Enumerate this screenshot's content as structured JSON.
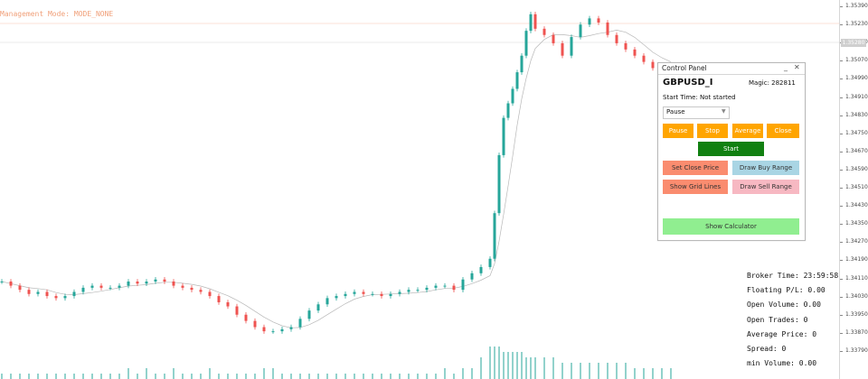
{
  "chart": {
    "mode_label": "Management Mode: MODE_NONE",
    "axis_ticks": [
      "1.35390",
      "1.35230",
      "1.35150",
      "1.35070",
      "1.34990",
      "1.34910",
      "1.34830",
      "1.34750",
      "1.34670",
      "1.34590",
      "1.34510",
      "1.34430",
      "1.34350",
      "1.34270",
      "1.34190",
      "1.34110",
      "1.34030",
      "1.33950",
      "1.33870",
      "1.33790"
    ],
    "current_price": "1.35280",
    "colors": {
      "bull": "#26a69a",
      "bear": "#ef5350",
      "ma": "#b0b0b0",
      "volume": "#26a69a",
      "guide": "#f7c6b0"
    },
    "chart_data": {
      "type": "candlestick",
      "symbol": "GBPUSD_I",
      "x": [
        0,
        10,
        20,
        30,
        40,
        50,
        60,
        70,
        80,
        90,
        100,
        110,
        120,
        130,
        140,
        150,
        160,
        170,
        180,
        190,
        200,
        210,
        220,
        230,
        240,
        250,
        260,
        270,
        280,
        290,
        300,
        310,
        320,
        330,
        340,
        350,
        360,
        370,
        380,
        390,
        400,
        410,
        420,
        430,
        440,
        450,
        460,
        470,
        480,
        490,
        500,
        510,
        520,
        530,
        540,
        545,
        550,
        555,
        560,
        565,
        570,
        575,
        580,
        585,
        590,
        600,
        610,
        620,
        630,
        640,
        650,
        660,
        670,
        680,
        690,
        700,
        710,
        720,
        730,
        740
      ],
      "close": [
        1.3421,
        1.3419,
        1.3417,
        1.3415,
        1.3416,
        1.3414,
        1.3413,
        1.3414,
        1.3416,
        1.3418,
        1.3419,
        1.3418,
        1.3418,
        1.3419,
        1.3421,
        1.342,
        1.3421,
        1.3422,
        1.3421,
        1.3419,
        1.3418,
        1.3417,
        1.3416,
        1.3414,
        1.3411,
        1.3409,
        1.3405,
        1.3402,
        1.3399,
        1.3397,
        1.3397,
        1.3398,
        1.3399,
        1.3403,
        1.3407,
        1.341,
        1.3413,
        1.3414,
        1.3415,
        1.3416,
        1.3415,
        1.3415,
        1.3414,
        1.3415,
        1.3416,
        1.3417,
        1.3417,
        1.3418,
        1.3419,
        1.3419,
        1.3417,
        1.3422,
        1.3425,
        1.3428,
        1.3432,
        1.3454,
        1.3482,
        1.35,
        1.3507,
        1.3514,
        1.3522,
        1.353,
        1.3542,
        1.355,
        1.3543,
        1.354,
        1.3536,
        1.353,
        1.3539,
        1.3545,
        1.3548,
        1.3546,
        1.354,
        1.3536,
        1.3533,
        1.353,
        1.3527,
        1.3524,
        1.3524,
        1.3524
      ],
      "volume": [
        1,
        1,
        1,
        1,
        1,
        1,
        1,
        1,
        1,
        1,
        1,
        1,
        1,
        1,
        2,
        1,
        2,
        1,
        1,
        2,
        1,
        1,
        1,
        2,
        1,
        1,
        1,
        1,
        1,
        2,
        2,
        1,
        1,
        1,
        1,
        1,
        1,
        1,
        1,
        1,
        1,
        1,
        1,
        1,
        1,
        1,
        1,
        1,
        1,
        2,
        1,
        2,
        2,
        4,
        6,
        6,
        6,
        5,
        5,
        5,
        5,
        5,
        4,
        4,
        4,
        4,
        4,
        3,
        3,
        3,
        3,
        3,
        3,
        3,
        3,
        2,
        2,
        2,
        2,
        2
      ]
    }
  },
  "panel": {
    "title": "Control Panel",
    "min_glyph": "_",
    "close_glyph": "✕",
    "symbol": "GBPUSD_I",
    "magic": "Magic: 282811",
    "start_time": "Start Time: Not started",
    "mode_select": "Pause",
    "buttons": {
      "pause": "Pause",
      "stop": "Stop",
      "average": "Average",
      "close": "Close",
      "start": "Start",
      "set_close_price": "Set Close Price",
      "draw_buy_range": "Draw Buy Range",
      "show_grid_lines": "Show Grid Lines",
      "draw_sell_range": "Draw Sell Range",
      "show_calculator": "Show Calculator"
    }
  },
  "stats": {
    "broker_time": "Broker Time: 23:59:58",
    "floating_pl": "Floating P/L: 0.00",
    "open_volume": "Open Volume: 0.00",
    "open_trades": "Open Trades: 0",
    "average_price": "Average Price: 0",
    "spread": "Spread: 0",
    "min_volume": "min Volume: 0.00"
  }
}
